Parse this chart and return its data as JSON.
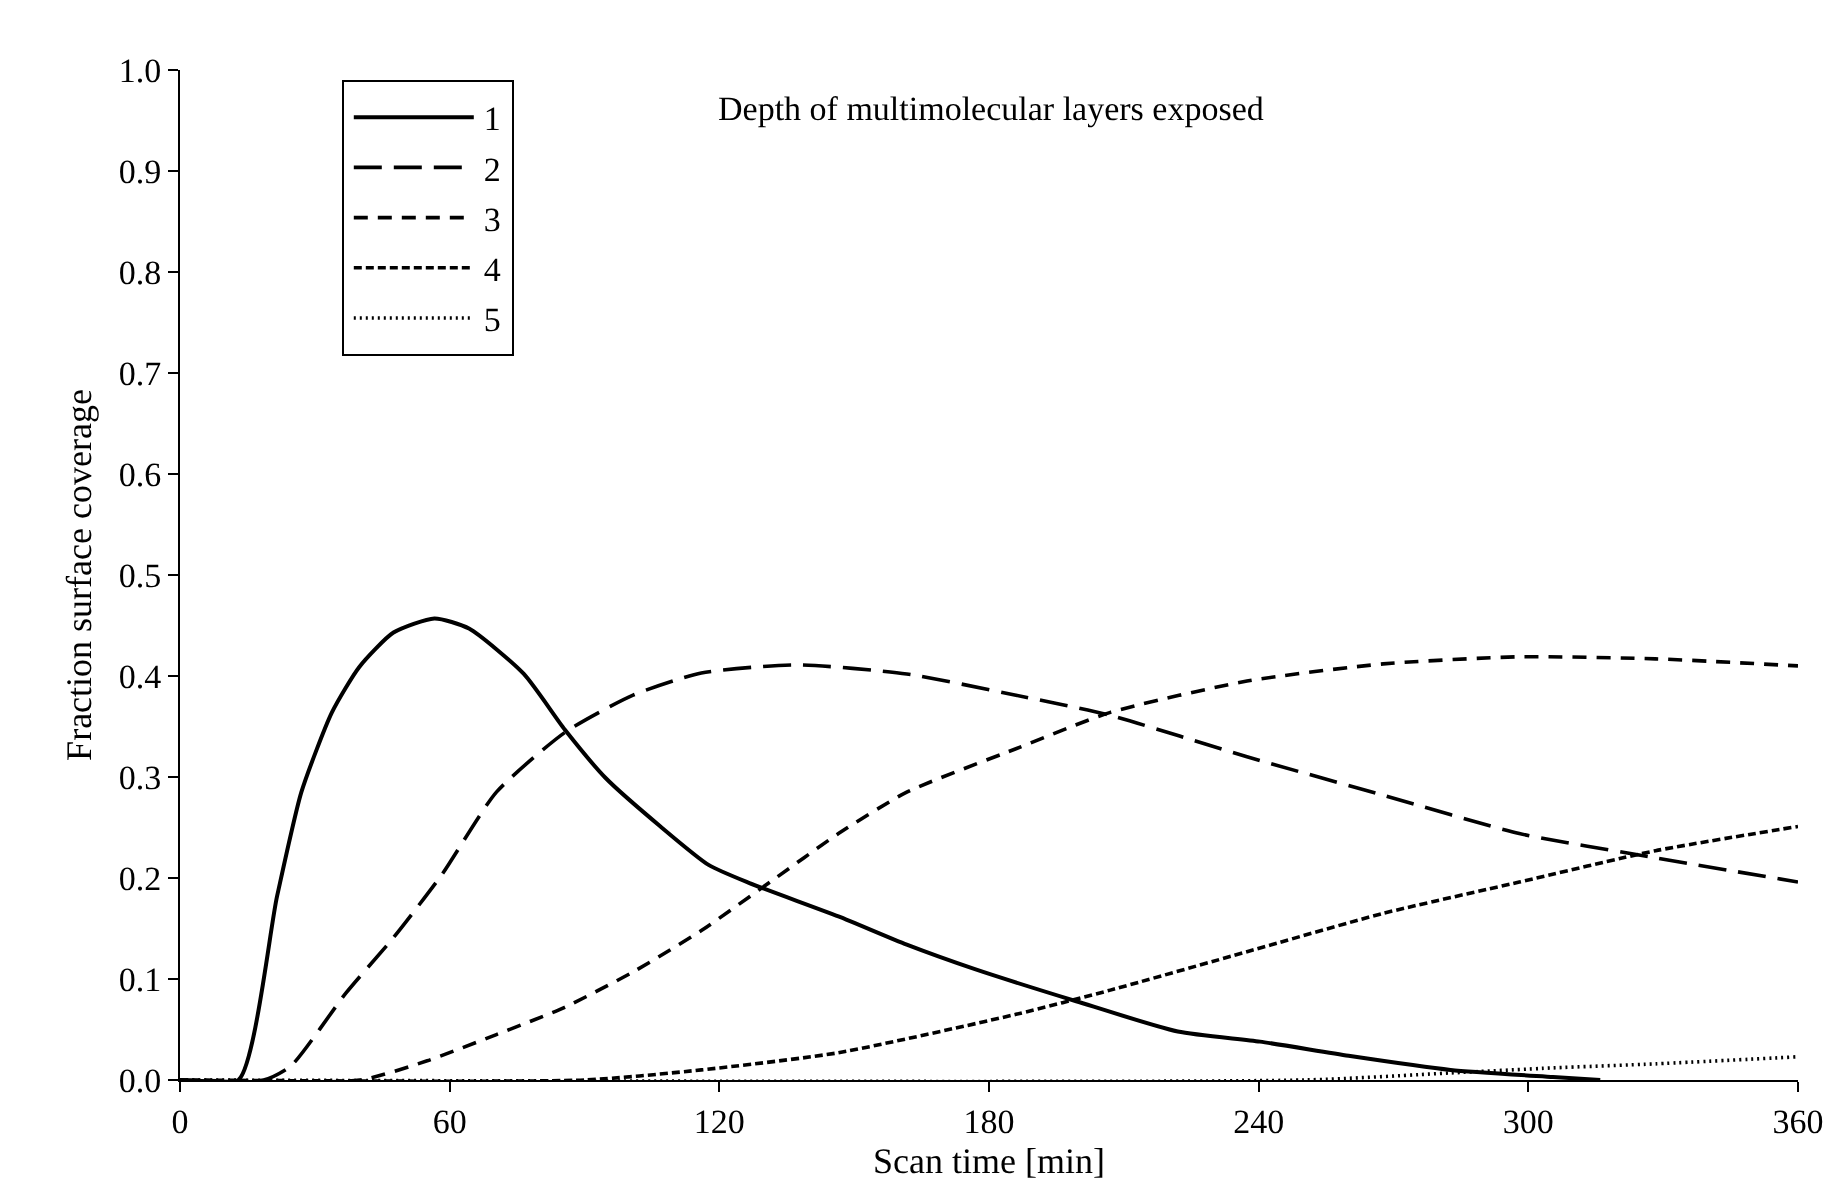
{
  "chart_data": {
    "type": "line",
    "xlabel": "Scan time [min]",
    "ylabel": "Fraction surface coverage",
    "legend_title": "Depth of multimolecular layers exposed",
    "legend": "top left",
    "grid": false,
    "marker": "none",
    "xlim": [
      0,
      360
    ],
    "xticks": [
      0,
      60,
      120,
      180,
      240,
      300,
      360
    ],
    "ylim": [
      0,
      1.0
    ],
    "yticks": [
      {
        "value": 0,
        "label": "0.0"
      },
      {
        "value": 0.1,
        "label": "0.1"
      },
      {
        "value": 0.2,
        "label": "0.2"
      },
      {
        "value": 0.3,
        "label": "0.3"
      },
      {
        "value": 0.4,
        "label": "0.4"
      },
      {
        "value": 0.5,
        "label": "0.5"
      },
      {
        "value": 0.6,
        "label": "0.6"
      },
      {
        "value": 0.7,
        "label": "0.7"
      },
      {
        "value": 0.8,
        "label": "0.8"
      },
      {
        "value": 0.9,
        "label": "0.9"
      },
      {
        "value": 1.0,
        "label": "1.0"
      }
    ],
    "series": [
      {
        "name": "1",
        "color": "#000000",
        "line_style": "solid",
        "x": [
          0,
          13,
          21.6,
          27,
          33.8,
          39.9,
          47.5,
          56.6,
          64.3,
          76.5,
          85.6,
          94.7,
          106.9,
          117.6,
          126.7,
          146.5,
          161.7,
          176.7,
          199.4,
          222,
          240.3,
          260,
          282.7,
          305.5,
          316
        ],
        "values": [
          0,
          0,
          0.182,
          0.285,
          0.364,
          0.409,
          0.443,
          0.457,
          0.447,
          0.402,
          0.347,
          0.299,
          0.251,
          0.213,
          0.195,
          0.162,
          0.134,
          0.11,
          0.078,
          0.048,
          0.038,
          0.024,
          0.01,
          0.003,
          0
        ]
      },
      {
        "name": "2",
        "color": "#000000",
        "line_style": "long dashed",
        "x": [
          0,
          18.6,
          24.7,
          36.9,
          47.5,
          58.2,
          70.4,
          85.6,
          100.8,
          116,
          137.4,
          161.7,
          186,
          207,
          237.4,
          267.7,
          298,
          328.3,
          360
        ],
        "values": [
          0,
          0,
          0.014,
          0.086,
          0.141,
          0.203,
          0.285,
          0.344,
          0.381,
          0.403,
          0.411,
          0.402,
          0.381,
          0.361,
          0.32,
          0.282,
          0.244,
          0.22,
          0.196
        ]
      },
      {
        "name": "3",
        "color": "#000000",
        "line_style": "dashed",
        "x": [
          0,
          40,
          55,
          70.4,
          85.6,
          100.8,
          116,
          131.3,
          146.5,
          161.7,
          186,
          207,
          237.4,
          267.7,
          298,
          328.3,
          360
        ],
        "values": [
          0,
          0,
          0.019,
          0.045,
          0.072,
          0.107,
          0.148,
          0.196,
          0.244,
          0.285,
          0.328,
          0.364,
          0.395,
          0.412,
          0.419,
          0.417,
          0.41
        ]
      },
      {
        "name": "4",
        "color": "#000000",
        "line_style": "short dashed",
        "x": [
          0,
          90,
          116,
          146.5,
          186,
          207,
          237.4,
          267.7,
          298,
          328.3,
          360
        ],
        "values": [
          0,
          0,
          0.01,
          0.027,
          0.065,
          0.089,
          0.127,
          0.165,
          0.196,
          0.227,
          0.251
        ]
      },
      {
        "name": "5",
        "color": "#000000",
        "line_style": "dotted",
        "x": [
          0,
          250,
          282.7,
          305.5,
          328.3,
          360
        ],
        "values": [
          0,
          0,
          0.007,
          0.012,
          0.016,
          0.023
        ]
      }
    ]
  }
}
